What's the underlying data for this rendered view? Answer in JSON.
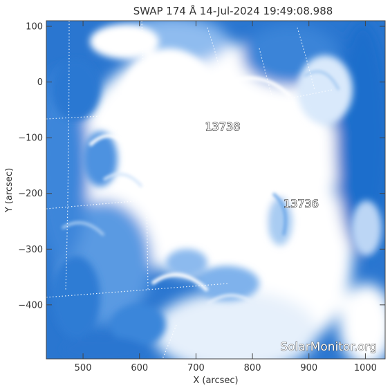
{
  "image": {
    "title": "SWAP 174 Å 14-Jul-2024 19:49:08.988",
    "colormap": {
      "dark": "#1565c4",
      "mid": "#4a90e0",
      "light": "#a9ccf2",
      "saturated": "#ffffff"
    }
  },
  "axes": {
    "x_label": "X (arcsec)",
    "y_label": "Y (arcsec)",
    "x_range": [
      435,
      1035
    ],
    "y_range": [
      -497,
      110
    ],
    "x_ticks": [
      "500",
      "600",
      "700",
      "800",
      "900",
      "1000"
    ],
    "y_ticks": [
      "100",
      "0",
      "−100",
      "−200",
      "−300",
      "−400"
    ]
  },
  "regions": [
    {
      "label": "13738",
      "x": 716,
      "y": -87
    },
    {
      "label": "13736",
      "x": 855,
      "y": -225
    }
  ],
  "watermark": "SolarMonitor.org"
}
